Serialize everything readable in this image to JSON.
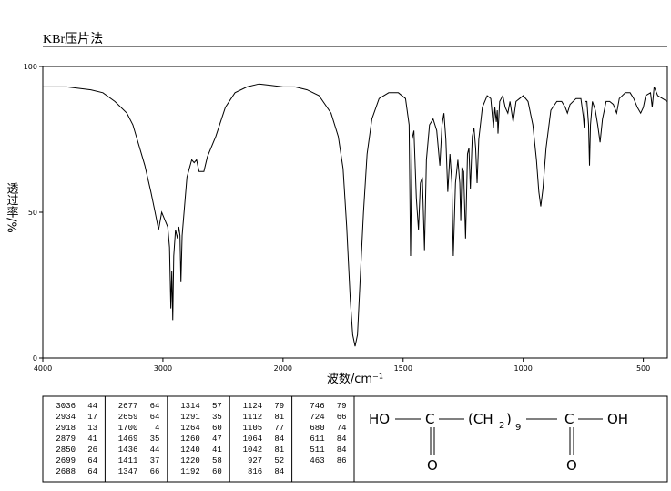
{
  "chart_data": {
    "type": "line",
    "title": "KBr压片法",
    "xlabel": "波数/cm⁻¹",
    "ylabel": "透过率/%",
    "xlim": [
      4000,
      400
    ],
    "xticks": [
      4000,
      3000,
      2000,
      1500,
      1000,
      500
    ],
    "ylim": [
      0,
      100
    ],
    "yticks": [
      0,
      50,
      100
    ],
    "color": "#000000",
    "series": [
      {
        "name": null,
        "color": "#000000",
        "x": [
          4000,
          3800,
          3600,
          3500,
          3400,
          3300,
          3250,
          3200,
          3150,
          3100,
          3070,
          3036,
          3010,
          2990,
          2960,
          2945,
          2934,
          2926,
          2918,
          2910,
          2895,
          2879,
          2868,
          2858,
          2850,
          2840,
          2800,
          2760,
          2740,
          2720,
          2699,
          2688,
          2677,
          2659,
          2630,
          2560,
          2480,
          2400,
          2300,
          2200,
          2100,
          2000,
          1950,
          1900,
          1850,
          1800,
          1770,
          1750,
          1735,
          1720,
          1710,
          1700,
          1690,
          1680,
          1665,
          1650,
          1630,
          1600,
          1560,
          1520,
          1490,
          1475,
          1469,
          1463,
          1455,
          1445,
          1436,
          1428,
          1420,
          1411,
          1403,
          1390,
          1375,
          1360,
          1347,
          1338,
          1330,
          1322,
          1314,
          1305,
          1297,
          1291,
          1282,
          1272,
          1264,
          1260,
          1255,
          1248,
          1240,
          1232,
          1226,
          1220,
          1212,
          1205,
          1198,
          1192,
          1185,
          1170,
          1150,
          1135,
          1124,
          1118,
          1112,
          1108,
          1105,
          1098,
          1085,
          1075,
          1064,
          1055,
          1042,
          1030,
          1015,
          1000,
          980,
          960,
          945,
          935,
          927,
          918,
          905,
          885,
          860,
          840,
          825,
          816,
          805,
          780,
          760,
          750,
          746,
          742,
          735,
          728,
          724,
          720,
          712,
          700,
          690,
          680,
          670,
          655,
          640,
          625,
          611,
          600,
          575,
          555,
          540,
          525,
          511,
          500,
          490,
          470,
          463,
          455,
          440,
          420,
          400
        ],
        "values": [
          93,
          93,
          92,
          91,
          88,
          84,
          80,
          73,
          66,
          57,
          51,
          44,
          50,
          48,
          45,
          38,
          17,
          30,
          13,
          35,
          44,
          41,
          45,
          42,
          26,
          42,
          62,
          68,
          67,
          68,
          64,
          64,
          64,
          64,
          69,
          76,
          86,
          91,
          93,
          94,
          93.5,
          93,
          93,
          92,
          90,
          84,
          76,
          65,
          45,
          20,
          8,
          4,
          8,
          25,
          50,
          70,
          82,
          89,
          91,
          91,
          89,
          80,
          35,
          75,
          78,
          55,
          44,
          60,
          62,
          37,
          68,
          80,
          82,
          78,
          66,
          80,
          84,
          75,
          57,
          70,
          60,
          35,
          60,
          68,
          60,
          47,
          65,
          64,
          41,
          70,
          72,
          58,
          76,
          79,
          72,
          60,
          75,
          86,
          90,
          89,
          79,
          86,
          81,
          85,
          77,
          88,
          90,
          86,
          84,
          88,
          81,
          88,
          89,
          90,
          88,
          80,
          68,
          57,
          52,
          58,
          72,
          85,
          88,
          88,
          86,
          84,
          87,
          89,
          89,
          83,
          79,
          88,
          88,
          80,
          66,
          80,
          88,
          85,
          80,
          74,
          82,
          88,
          88,
          87,
          84,
          89,
          91,
          91,
          89,
          86,
          84,
          86,
          90,
          91,
          86,
          93,
          90,
          89,
          88
        ]
      }
    ]
  },
  "peak_table": {
    "columns": [
      [
        [
          "3036",
          "44"
        ],
        [
          "2934",
          "17"
        ],
        [
          "2918",
          "13"
        ],
        [
          "2879",
          "41"
        ],
        [
          "2850",
          "26"
        ],
        [
          "2699",
          "64"
        ],
        [
          "2688",
          "64"
        ]
      ],
      [
        [
          "2677",
          "64"
        ],
        [
          "2659",
          "64"
        ],
        [
          "1700",
          "4"
        ],
        [
          "1469",
          "35"
        ],
        [
          "1436",
          "44"
        ],
        [
          "1411",
          "37"
        ],
        [
          "1347",
          "66"
        ]
      ],
      [
        [
          "1314",
          "57"
        ],
        [
          "1291",
          "35"
        ],
        [
          "1264",
          "60"
        ],
        [
          "1260",
          "47"
        ],
        [
          "1240",
          "41"
        ],
        [
          "1220",
          "58"
        ],
        [
          "1192",
          "60"
        ]
      ],
      [
        [
          "1124",
          "79"
        ],
        [
          "1112",
          "81"
        ],
        [
          "1105",
          "77"
        ],
        [
          "1064",
          "84"
        ],
        [
          "1042",
          "81"
        ],
        [
          "927",
          "52"
        ],
        [
          "816",
          "84"
        ]
      ],
      [
        [
          "746",
          "79"
        ],
        [
          "724",
          "66"
        ],
        [
          "680",
          "74"
        ],
        [
          "611",
          "84"
        ],
        [
          "511",
          "84"
        ],
        [
          "463",
          "86"
        ]
      ]
    ]
  },
  "structure": {
    "left": "HO",
    "c1": "C",
    "chain": "(CH",
    "sub1": "2",
    "close": ")",
    "sub2": "9",
    "c2": "C",
    "right": "OH",
    "o1": "O",
    "o2": "O"
  }
}
